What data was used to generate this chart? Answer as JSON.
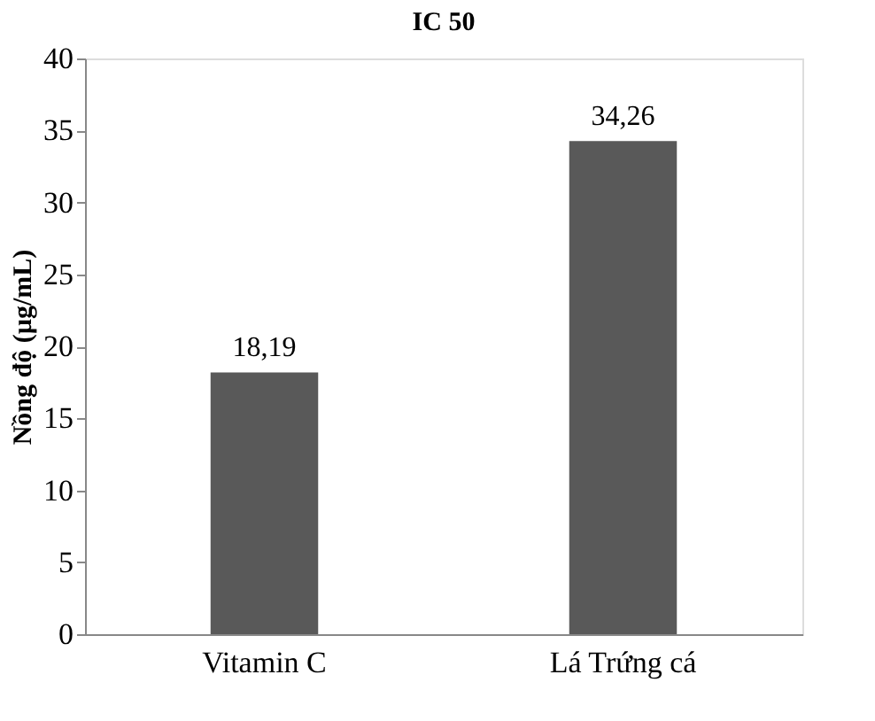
{
  "chart_data": {
    "type": "bar",
    "title": "IC 50",
    "ylabel": "Nồng độ (µg/mL)",
    "categories": [
      "Vitamin C",
      "Lá Trứng cá"
    ],
    "values": [
      18.19,
      34.26
    ],
    "value_labels": [
      "18,19",
      "34,26"
    ],
    "color": "#595959",
    "ylim": [
      0,
      40
    ],
    "yticks": [
      0,
      5,
      10,
      15,
      20,
      25,
      30,
      35,
      40
    ],
    "grid": false
  }
}
